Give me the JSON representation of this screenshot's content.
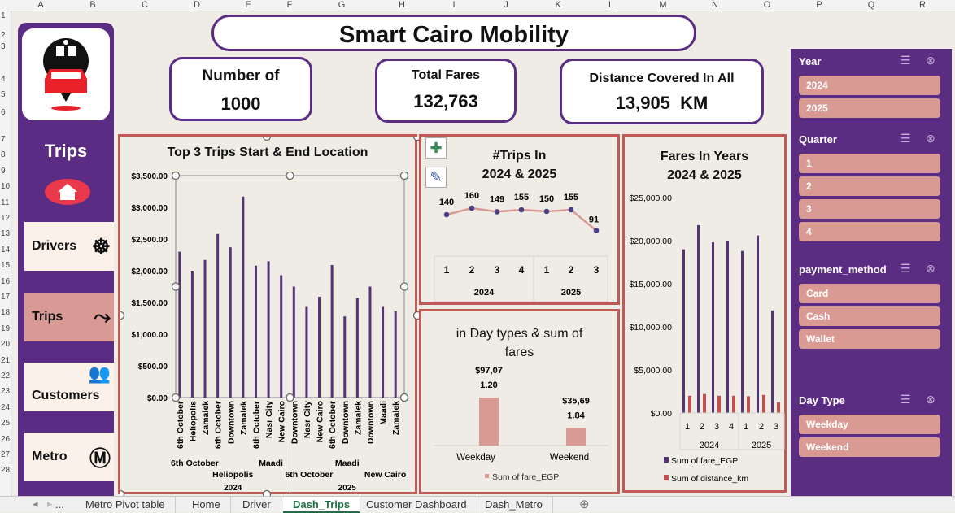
{
  "sheet": {
    "columns": [
      "A",
      "B",
      "C",
      "D",
      "E",
      "F",
      "G",
      "H",
      "I",
      "J",
      "K",
      "L",
      "M",
      "N",
      "O",
      "P",
      "Q",
      "R"
    ],
    "rows": [
      "1",
      "2",
      "3",
      "4",
      "5",
      "6",
      "7",
      "8",
      "9",
      "10",
      "11",
      "12",
      "13",
      "14",
      "15",
      "16",
      "17",
      "18",
      "19",
      "20",
      "21",
      "22",
      "23",
      "24",
      "25",
      "26",
      "27",
      "28"
    ]
  },
  "title": "Smart Cairo Mobility",
  "sidebar": {
    "section": "Trips",
    "items": [
      {
        "label": "Drivers",
        "icon": "steering-wheel-icon"
      },
      {
        "label": "Trips",
        "icon": "route-pin-icon",
        "active": true
      },
      {
        "label": "Customers",
        "icon": "people-icon"
      },
      {
        "label": "Metro",
        "icon": "metro-sign-icon"
      }
    ]
  },
  "kpis": [
    {
      "label": "Number of",
      "value": "1000"
    },
    {
      "label": "Total Fares",
      "value": "132,763"
    },
    {
      "label": "Distance Covered In All",
      "value": "13,905  KM"
    }
  ],
  "colors": {
    "purple": "#5b2c83",
    "bar_purple": "#553377",
    "bar_red": "#c0504d",
    "pink": "#d99a94",
    "line": "#d99a94",
    "point": "#4a3f85"
  },
  "chart_data": [
    {
      "type": "bar",
      "title": "Top 3 Trips Start & End Location",
      "ylim": [
        0,
        3500
      ],
      "yticks": [
        "$0.00",
        "$500.00",
        "$1,000.00",
        "$1,500.00",
        "$2,000.00",
        "$2,500.00",
        "$3,000.00",
        "$3,500.00"
      ],
      "categories": [
        "6th October",
        "Heliopolis",
        "Zamalek",
        "6th October",
        "Downtown",
        "Zamalek",
        "6th October",
        "Nasr City",
        "New Cairo",
        "Downtown",
        "Nasr City",
        "New Cairo",
        "6th October",
        "Downtown",
        "Zamalek",
        "Downtown",
        "Maadi",
        "Zamalek"
      ],
      "groups": [
        "6th October",
        "Heliopolis",
        "Maadi",
        "6th October",
        "Maadi",
        "New Cairo"
      ],
      "years": [
        "2024",
        "2025"
      ],
      "values": [
        2300,
        2000,
        2170,
        2580,
        2370,
        3170,
        2080,
        2150,
        1930,
        1750,
        1430,
        1590,
        2090,
        1280,
        1570,
        1750,
        1430,
        1360
      ]
    },
    {
      "type": "line",
      "title_lines": [
        "#Trips In",
        "2024 & 2025"
      ],
      "categories": [
        "1",
        "2",
        "3",
        "4",
        "1",
        "2",
        "3"
      ],
      "years": [
        "2024",
        "2025"
      ],
      "values": [
        140,
        160,
        149,
        155,
        150,
        155,
        91
      ]
    },
    {
      "type": "bar",
      "title_lines": [
        "in Day types  & sum of",
        "fares"
      ],
      "categories": [
        "Weekday",
        "Weekend"
      ],
      "values": [
        97071.2,
        35691.84
      ],
      "data_labels": [
        [
          "$97,07",
          "1.20"
        ],
        [
          "$35,69",
          "1.84"
        ]
      ],
      "legend": "Sum of fare_EGP"
    },
    {
      "type": "bar",
      "title_lines": [
        "Fares In Years",
        "2024 & 2025"
      ],
      "ylim": [
        0,
        25000
      ],
      "yticks": [
        "$0.00",
        "$5,000.00",
        "$10,000.00",
        "$15,000.00",
        "$20,000.00",
        "$25,000.00"
      ],
      "categories": [
        "1",
        "2",
        "3",
        "4",
        "1",
        "2",
        "3"
      ],
      "years": [
        "2024",
        "2025"
      ],
      "series": [
        {
          "name": "Sum of fare_EGP",
          "values": [
            19000,
            21800,
            19800,
            20000,
            18800,
            20600,
            11900
          ]
        },
        {
          "name": "Sum of distance_km",
          "values": [
            2000,
            2200,
            2000,
            2000,
            1950,
            2100,
            1250
          ]
        }
      ],
      "legend": "bottom"
    }
  ],
  "slicers": [
    {
      "title": "Year",
      "items": [
        "2024",
        "2025"
      ]
    },
    {
      "title": "Quarter",
      "items": [
        "1",
        "2",
        "3",
        "4"
      ]
    },
    {
      "title": "payment_method",
      "items": [
        "Card",
        "Cash",
        "Wallet"
      ]
    },
    {
      "title": "Day Type",
      "items": [
        "Weekday",
        "Weekend"
      ]
    }
  ],
  "tabs": [
    "...",
    "Metro Pivot table",
    "Home",
    "Driver",
    "Dash_Trips",
    "Customer Dashboard",
    "Dash_Metro"
  ],
  "active_tab": "Dash_Trips"
}
